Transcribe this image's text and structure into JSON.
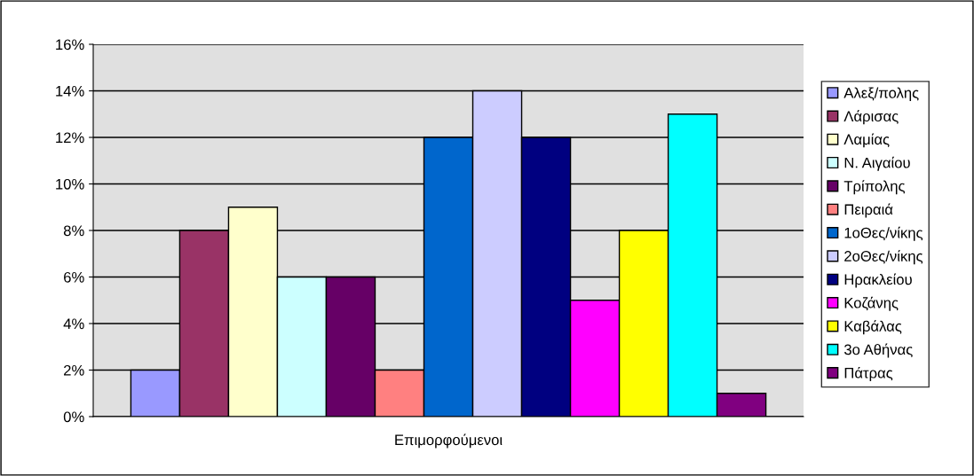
{
  "chart_data": {
    "type": "bar",
    "categories": [
      "Επιμορφούμενοι"
    ],
    "series": [
      {
        "name": "Αλεξ/πολης",
        "color": "#9999ff",
        "values": [
          2
        ]
      },
      {
        "name": "Λάρισας",
        "color": "#993366",
        "values": [
          8
        ]
      },
      {
        "name": "Λαμίας",
        "color": "#ffffcc",
        "values": [
          9
        ]
      },
      {
        "name": "Ν. Αιγαίου",
        "color": "#ccffff",
        "values": [
          6
        ]
      },
      {
        "name": "Τρίπολης",
        "color": "#660066",
        "values": [
          6
        ]
      },
      {
        "name": "Πειραιά",
        "color": "#ff8080",
        "values": [
          2
        ]
      },
      {
        "name": "1οΘες/νίκης",
        "color": "#0066cc",
        "values": [
          12
        ]
      },
      {
        "name": "2οΘες/νίκης",
        "color": "#ccccff",
        "values": [
          14
        ]
      },
      {
        "name": "Ηρακλείου",
        "color": "#000080",
        "values": [
          12
        ]
      },
      {
        "name": "Κοζάνης",
        "color": "#ff00ff",
        "values": [
          5
        ]
      },
      {
        "name": "Καβάλας",
        "color": "#ffff00",
        "values": [
          8
        ]
      },
      {
        "name": "3ο Αθήνας",
        "color": "#00ffff",
        "values": [
          13
        ]
      },
      {
        "name": "Πάτρας",
        "color": "#800080",
        "values": [
          1
        ]
      }
    ],
    "ylim": [
      0,
      16
    ],
    "yticks": [
      {
        "value": 0,
        "label": "0%"
      },
      {
        "value": 2,
        "label": "2%"
      },
      {
        "value": 4,
        "label": "4%"
      },
      {
        "value": 6,
        "label": "6%"
      },
      {
        "value": 8,
        "label": "8%"
      },
      {
        "value": 10,
        "label": "10%"
      },
      {
        "value": 12,
        "label": "12%"
      },
      {
        "value": 14,
        "label": "14%"
      },
      {
        "value": 16,
        "label": "16%"
      }
    ],
    "grid": "y",
    "legend": "right"
  }
}
